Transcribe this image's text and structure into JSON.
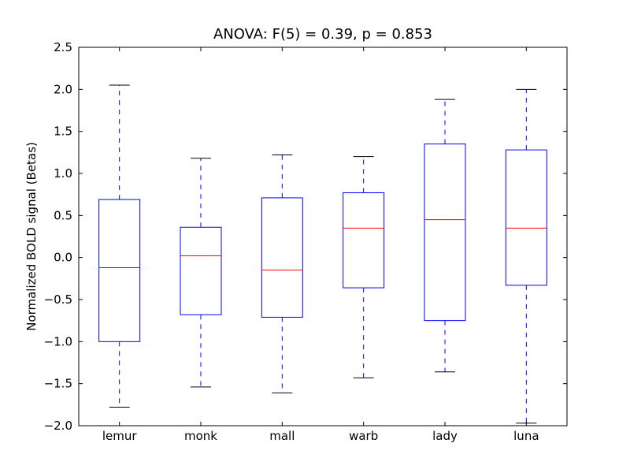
{
  "chart_data": {
    "type": "box",
    "title": "ANOVA: F(5) = 0.39, p = 0.853",
    "xlabel": "",
    "ylabel": "Normalized BOLD signal (Betas)",
    "ylim": [
      -2.0,
      2.5
    ],
    "yticks": [
      "−2.0",
      "−1.5",
      "−1.0",
      "−0.5",
      "0.0",
      "0.5",
      "1.0",
      "1.5",
      "2.0",
      "2.5"
    ],
    "categories": [
      "lemur",
      "monk",
      "mall",
      "warb",
      "lady",
      "luna"
    ],
    "boxes": [
      {
        "whisker_low": -1.78,
        "q1": -1.0,
        "median": -0.12,
        "q3": 0.69,
        "whisker_high": 2.05
      },
      {
        "whisker_low": -1.54,
        "q1": -0.68,
        "median": 0.02,
        "q3": 0.36,
        "whisker_high": 1.18
      },
      {
        "whisker_low": -1.61,
        "q1": -0.71,
        "median": -0.15,
        "q3": 0.71,
        "whisker_high": 1.22
      },
      {
        "whisker_low": -1.43,
        "q1": -0.36,
        "median": 0.35,
        "q3": 0.77,
        "whisker_high": 1.2
      },
      {
        "whisker_low": -1.36,
        "q1": -0.75,
        "median": 0.45,
        "q3": 1.35,
        "whisker_high": 1.88
      },
      {
        "whisker_low": -1.97,
        "q1": -0.33,
        "median": 0.35,
        "q3": 1.28,
        "whisker_high": 2.0
      }
    ],
    "colors": {
      "box": "#0000ff",
      "median": "#ff0000",
      "whisker": "#0000ff",
      "cap": "#000000"
    },
    "grid": false
  }
}
